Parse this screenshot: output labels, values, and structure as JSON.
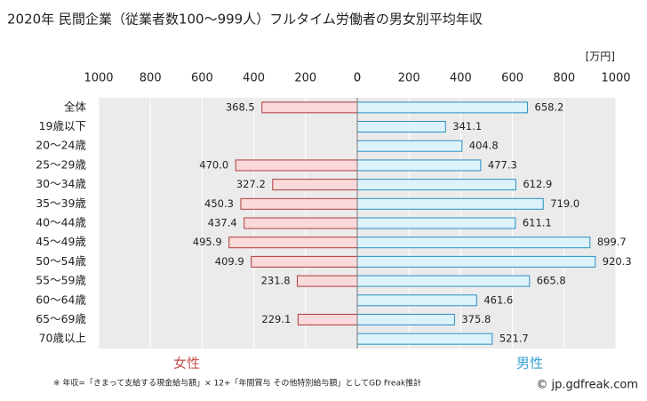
{
  "chart_data": {
    "type": "butterfly_bar",
    "title": "2020年 民間企業（従業者数100〜999人）フルタイム労働者の男女別平均年収",
    "unit_label": "[万円]",
    "categories": [
      "全体",
      "19歳以下",
      "20〜24歳",
      "25〜29歳",
      "30〜34歳",
      "35〜39歳",
      "40〜44歳",
      "45〜49歳",
      "50〜54歳",
      "55〜59歳",
      "60〜64歳",
      "65〜69歳",
      "70歳以上"
    ],
    "series": [
      {
        "name": "女性",
        "side": "left",
        "color": "#f9d9d9",
        "edge": "#b03a3a",
        "label_color": "#c0504d",
        "values": [
          368.5,
          null,
          null,
          470.0,
          327.2,
          450.3,
          437.4,
          495.9,
          409.9,
          231.8,
          null,
          229.1,
          null
        ],
        "value_labels": [
          "368.5",
          null,
          null,
          "470.0",
          "327.2",
          "450.3",
          "437.4",
          "495.9",
          "409.9",
          "231.8",
          null,
          "229.1",
          null
        ]
      },
      {
        "name": "男性",
        "side": "right",
        "color": "#dcf3fb",
        "edge": "#2a8fc2",
        "label_color": "#3a9fd0",
        "values": [
          658.2,
          341.1,
          404.8,
          477.3,
          612.9,
          719.0,
          611.1,
          899.7,
          920.3,
          665.8,
          461.6,
          375.8,
          521.7
        ],
        "value_labels": [
          "658.2",
          "341.1",
          "404.8",
          "477.3",
          "612.9",
          "719.0",
          "611.1",
          "899.7",
          "920.3",
          "665.8",
          "461.6",
          "375.8",
          "521.7"
        ]
      }
    ],
    "xlim": [
      0,
      1000
    ],
    "xticks_left": [
      1000,
      800,
      600,
      400,
      200,
      0
    ],
    "xticks_right": [
      0,
      200,
      400,
      600,
      800,
      1000
    ],
    "grid": true,
    "footnote": "※ 年収=「きまって支給する現金給与額」× 12+「年間賞与 その他特別給与額」としてGD Freak推計",
    "credit": "© jp.gdfreak.com"
  }
}
